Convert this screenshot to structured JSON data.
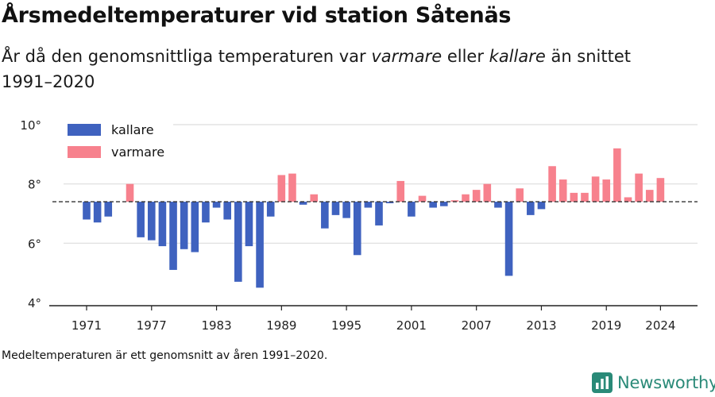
{
  "title": "Årsmedeltemperaturer vid station Såtenäs",
  "subtitle": {
    "part1": "År då den genomsnittliga temperaturen var ",
    "warm_word": "varmare",
    "part2": " eller ",
    "cold_word": "kallare",
    "part3": " än snittet 1991–2020"
  },
  "note": "Medeltemperaturen är ett genomsnitt av åren 1991–2020.",
  "brand": "Newsworthy",
  "colors": {
    "kallare": "#3f62bf",
    "varmare": "#f7818d",
    "brand": "#2a8a78",
    "grid": "#dddddd"
  },
  "chart_data": {
    "type": "bar",
    "baseline": 7.4,
    "ylim": [
      4,
      10
    ],
    "yticks": [
      4,
      6,
      8,
      10
    ],
    "ytick_labels": [
      "4°",
      "6°",
      "8°",
      "10°"
    ],
    "xtick_years": [
      1971,
      1977,
      1983,
      1989,
      1995,
      2001,
      2007,
      2013,
      2019,
      2024
    ],
    "xtick_labels": [
      "1971",
      "1977",
      "1983",
      "1989",
      "1995",
      "2001",
      "2007",
      "2013",
      "2019",
      "2024"
    ],
    "legend": [
      {
        "key": "kallare",
        "label": "kallare"
      },
      {
        "key": "varmare",
        "label": "varmare"
      }
    ],
    "legend_position": "top-left",
    "grid": true,
    "years": [
      1971,
      1972,
      1973,
      1974,
      1975,
      1976,
      1977,
      1978,
      1979,
      1980,
      1981,
      1982,
      1983,
      1984,
      1985,
      1986,
      1987,
      1988,
      1989,
      1990,
      1991,
      1992,
      1993,
      1994,
      1995,
      1996,
      1997,
      1998,
      1999,
      2000,
      2001,
      2002,
      2003,
      2004,
      2005,
      2006,
      2007,
      2008,
      2009,
      2010,
      2011,
      2012,
      2013,
      2014,
      2015,
      2016,
      2017,
      2018,
      2019,
      2020,
      2021,
      2022,
      2023,
      2024
    ],
    "values": [
      6.8,
      6.7,
      6.9,
      null,
      8.0,
      6.2,
      6.1,
      5.9,
      5.1,
      5.8,
      5.7,
      6.7,
      7.2,
      6.8,
      4.7,
      5.9,
      4.5,
      6.9,
      8.3,
      8.35,
      7.3,
      7.65,
      6.5,
      6.95,
      6.85,
      5.6,
      7.2,
      6.6,
      7.35,
      8.1,
      6.9,
      7.6,
      7.2,
      7.25,
      7.45,
      7.65,
      7.8,
      8.0,
      7.2,
      4.9,
      7.85,
      6.95,
      7.15,
      8.6,
      8.15,
      7.7,
      7.7,
      8.25,
      8.15,
      9.2,
      7.55,
      8.35,
      7.8,
      8.2
    ]
  }
}
